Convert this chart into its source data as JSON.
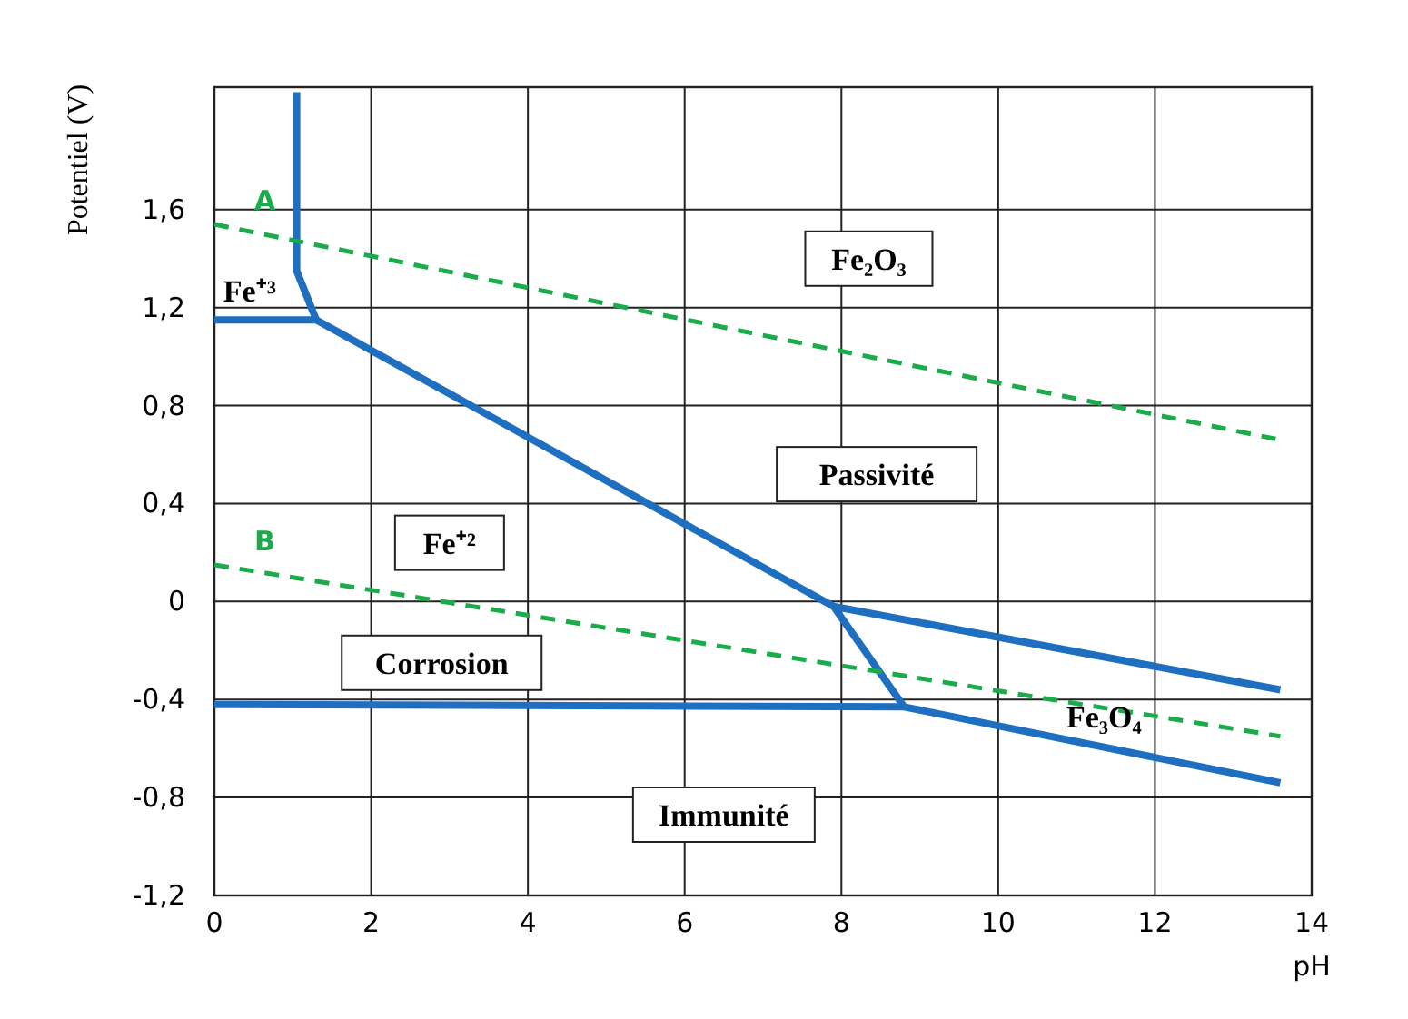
{
  "chart_data": {
    "type": "line",
    "xlabel": "pH",
    "ylabel": "Potentiel (V)",
    "xlim": [
      0,
      14
    ],
    "ylim": [
      -1.2,
      2.1
    ],
    "xticks": [
      0,
      2,
      4,
      6,
      8,
      10,
      12,
      14
    ],
    "yticks": [
      {
        "value": -1.2,
        "label": "-1,2"
      },
      {
        "value": -0.8,
        "label": "-0,8"
      },
      {
        "value": -0.4,
        "label": "-0,4"
      },
      0,
      {
        "value": 0.4,
        "label": "0,4"
      },
      {
        "value": 0.8,
        "label": "0,8"
      },
      {
        "value": 1.2,
        "label": "1,2"
      },
      {
        "value": 1.6,
        "label": "1,6"
      }
    ],
    "grid": true,
    "series": [
      {
        "color": "#1f6fc0",
        "line_style": "solid",
        "x": [
          1.05,
          1.05,
          1.3,
          7.9,
          8.8
        ],
        "values": [
          2.08,
          1.35,
          1.15,
          -0.02,
          -0.43
        ]
      },
      {
        "color": "#1f6fc0",
        "line_style": "solid",
        "x": [
          0,
          1.3
        ],
        "values": [
          1.15,
          1.15
        ]
      },
      {
        "color": "#1f6fc0",
        "line_style": "solid",
        "x": [
          0,
          8.8,
          13.6
        ],
        "values": [
          -0.42,
          -0.43,
          -0.74
        ]
      },
      {
        "color": "#1f6fc0",
        "line_style": "solid",
        "x": [
          7.9,
          13.6
        ],
        "values": [
          -0.02,
          -0.36
        ]
      },
      {
        "name": "A",
        "color": "#1aab4a",
        "line_style": "dashed",
        "x": [
          0,
          13.6
        ],
        "values": [
          1.54,
          0.66
        ]
      },
      {
        "name": "B",
        "color": "#1aab4a",
        "line_style": "dashed",
        "x": [
          0,
          13.6
        ],
        "values": [
          0.15,
          -0.55
        ]
      }
    ],
    "annotations": [
      "Fe⁺³",
      "Fe⁺²",
      "Fe₂O₃",
      "Passivité",
      "Corrosion",
      "Fe₃O₄",
      "Immunité"
    ]
  }
}
